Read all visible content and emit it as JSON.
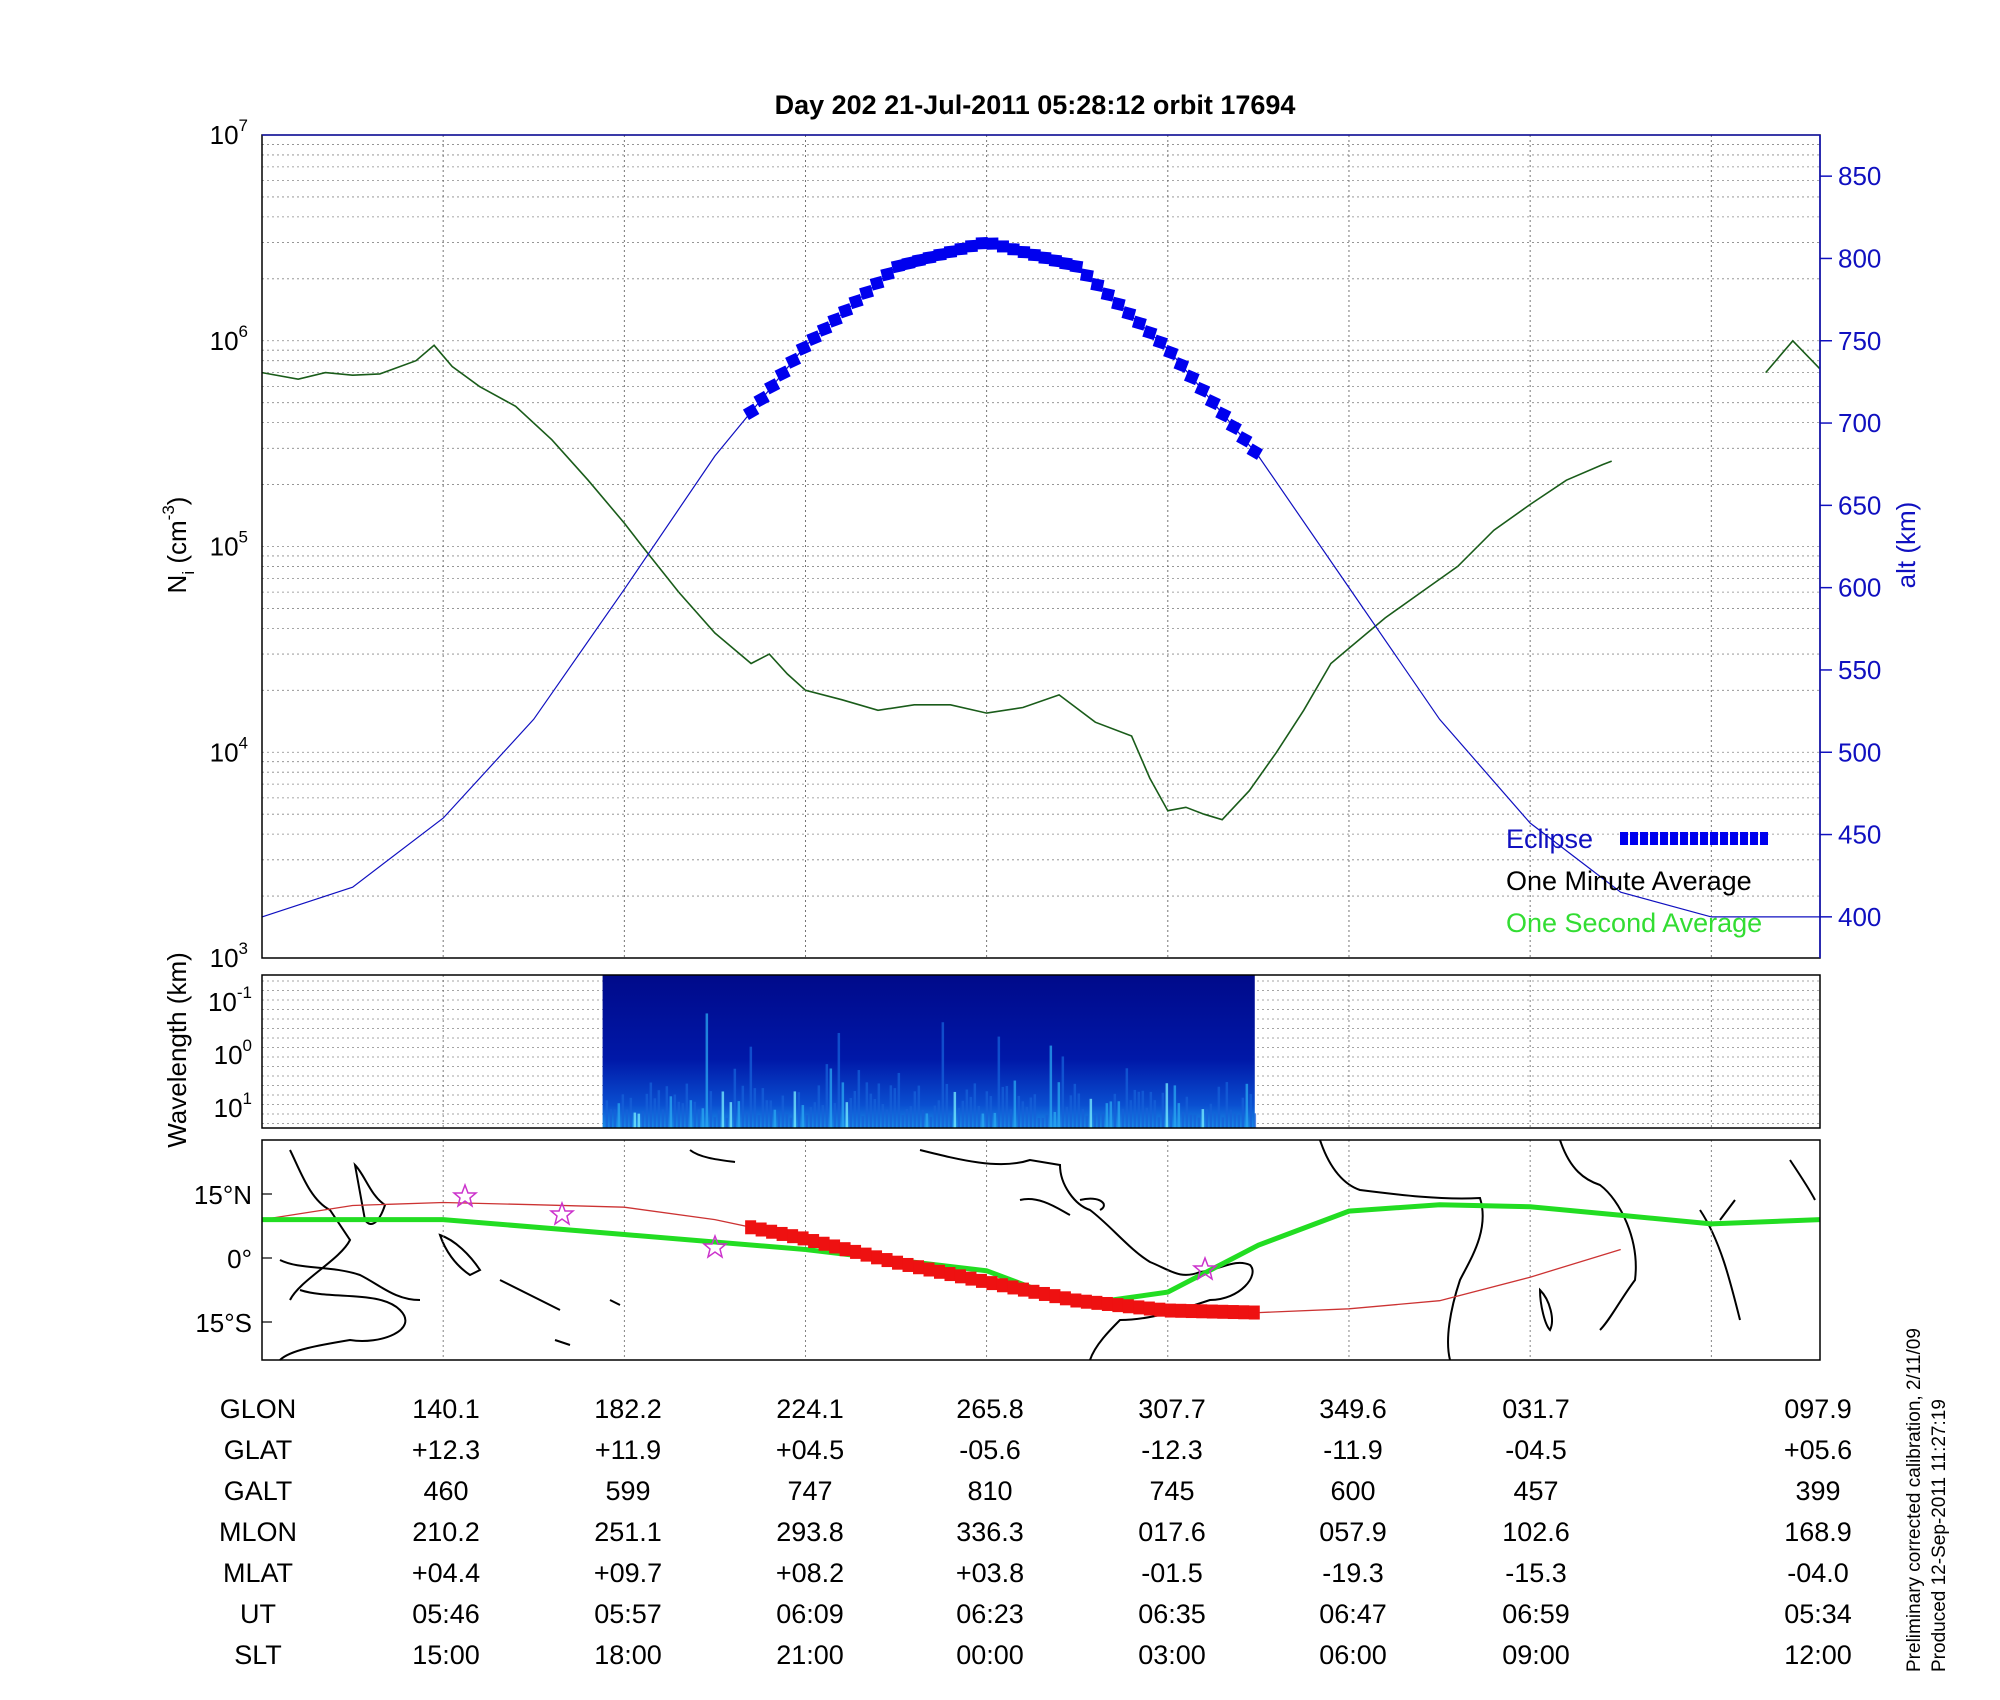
{
  "chart_data": [
    {
      "type": "line",
      "title": "Day 202  21-Jul-2011 05:28:12   orbit 17694",
      "ylabel": "N_i (cm^-3)",
      "ylabel_base": "N",
      "ylabel_sub": "i",
      "ylabel_unit_open": " (cm",
      "ylabel_unit_sup": "-3",
      "ylabel_unit_close": ")",
      "y_scale": "log",
      "ylim": [
        1000,
        10000000
      ],
      "y_ticks": [
        {
          "base": "10",
          "exp": "3"
        },
        {
          "base": "10",
          "exp": "4"
        },
        {
          "base": "10",
          "exp": "5"
        },
        {
          "base": "10",
          "exp": "6"
        },
        {
          "base": "10",
          "exp": "7"
        }
      ],
      "y2label": "alt (km)",
      "y2lim": [
        375,
        875
      ],
      "y2_ticks": [
        "400",
        "450",
        "500",
        "550",
        "600",
        "650",
        "700",
        "750",
        "800",
        "850"
      ],
      "x_index_range": [
        0,
        8.6
      ],
      "grid": true,
      "series": [
        {
          "name": "One Minute Average",
          "color": "#1a5c1a",
          "x": [
            0,
            0.2,
            0.35,
            0.5,
            0.65,
            0.85,
            0.95,
            1.05,
            1.2,
            1.4,
            1.6,
            1.8,
            2.0,
            2.1,
            2.3,
            2.5,
            2.7,
            2.8,
            2.9,
            3.0,
            3.2,
            3.4,
            3.6,
            3.8,
            4.0,
            4.2,
            4.4,
            4.6,
            4.8,
            4.9,
            5.0,
            5.1,
            5.2,
            5.3,
            5.45,
            5.6,
            5.75,
            5.9,
            6.0,
            6.2,
            6.4,
            6.6,
            6.8,
            7.0,
            7.2,
            7.4,
            7.45
          ],
          "y": [
            700000,
            650000,
            700000,
            680000,
            690000,
            800000,
            950000,
            750000,
            600000,
            480000,
            330000,
            210000,
            130000,
            100000,
            60000,
            38000,
            27000,
            30000,
            24000,
            20000,
            18000,
            16000,
            17000,
            17000,
            15500,
            16500,
            19000,
            14000,
            12000,
            7500,
            5200,
            5400,
            5000,
            4700,
            6500,
            10000,
            16000,
            27000,
            32000,
            45000,
            60000,
            80000,
            120000,
            160000,
            210000,
            250000,
            260000
          ]
        },
        {
          "name": "One Second Average",
          "color": "#33dd33",
          "x": [],
          "y": []
        },
        {
          "name": "One Minute Average (end segment)",
          "color": "#1a5c1a",
          "x": [
            8.3,
            8.45,
            8.6
          ],
          "y": [
            700000,
            1000000,
            730000
          ]
        },
        {
          "name": "alt (km)",
          "axis": "right",
          "color": "#1010c0",
          "x": [
            0,
            0.5,
            1.0,
            1.5,
            2.0,
            2.5,
            3.0,
            3.5,
            4.0,
            4.5,
            5.0,
            5.5,
            6.0,
            6.5,
            7.0,
            7.5,
            8.0,
            8.6
          ],
          "y": [
            400,
            418,
            460,
            520,
            599,
            680,
            747,
            795,
            810,
            795,
            745,
            680,
            600,
            520,
            457,
            415,
            400,
            400
          ]
        },
        {
          "name": "Eclipse",
          "axis": "right",
          "color": "#0000ee",
          "marker": "square",
          "x_range": [
            2.7,
            5.48
          ]
        }
      ],
      "legend": [
        "Eclipse",
        "One Minute Average",
        "One Second Average"
      ],
      "legend_position": "bottom-right"
    },
    {
      "type": "heatmap",
      "ylabel": "Wavelength (km)",
      "y_ticks": [
        {
          "base": "10",
          "exp": "-1"
        },
        {
          "base": "10",
          "exp": "0"
        },
        {
          "base": "10",
          "exp": "1"
        }
      ],
      "x_index_range": [
        1.88,
        5.48
      ]
    },
    {
      "type": "line",
      "ylabel_ticks": [
        "15°N",
        "0°",
        "15°S"
      ],
      "series": [
        {
          "name": "orbit ground track",
          "color": "#cc3333",
          "x": [
            0,
            0.5,
            1.0,
            1.5,
            2.0,
            2.5,
            3.0,
            3.5,
            4.0,
            4.5,
            5.0,
            5.5,
            6.0,
            6.5,
            7.0,
            7.5
          ],
          "y": [
            9,
            12.3,
            13,
            12.5,
            11.9,
            9,
            4.5,
            -1,
            -5.6,
            -10,
            -12.3,
            -12.8,
            -11.9,
            -10,
            -4.5,
            2
          ]
        },
        {
          "name": "eclipse ground track",
          "color": "#ee1111",
          "marker": "square",
          "x_range": [
            2.7,
            5.48
          ]
        },
        {
          "name": "magnetic equator",
          "color": "#22dd22",
          "x": [
            0,
            1,
            2,
            3,
            4,
            4.5,
            5,
            5.5,
            6,
            6.5,
            7,
            7.5,
            8,
            8.6
          ],
          "y": [
            9,
            9,
            5.5,
            2,
            -3,
            -11,
            -8,
            3,
            11,
            12.5,
            12,
            10,
            8,
            9
          ]
        }
      ]
    }
  ],
  "table": {
    "rows": [
      {
        "label": "GLON",
        "values": [
          "140.1",
          "182.2",
          "224.1",
          "265.8",
          "307.7",
          "349.6",
          "031.7",
          "097.9"
        ]
      },
      {
        "label": "GLAT",
        "values": [
          "+12.3",
          "+11.9",
          "+04.5",
          "-05.6",
          "-12.3",
          "-11.9",
          "-04.5",
          "+05.6"
        ]
      },
      {
        "label": "GALT",
        "values": [
          "460",
          "599",
          "747",
          "810",
          "745",
          "600",
          "457",
          "399"
        ]
      },
      {
        "label": "MLON",
        "values": [
          "210.2",
          "251.1",
          "293.8",
          "336.3",
          "017.6",
          "057.9",
          "102.6",
          "168.9"
        ]
      },
      {
        "label": "MLAT",
        "values": [
          "+04.4",
          "+09.7",
          "+08.2",
          "+03.8",
          "-01.5",
          "-19.3",
          "-15.3",
          "-04.0"
        ]
      },
      {
        "label": "UT",
        "values": [
          "05:46",
          "05:57",
          "06:09",
          "06:23",
          "06:35",
          "06:47",
          "06:59",
          "05:34"
        ]
      },
      {
        "label": "SLT",
        "values": [
          "15:00",
          "18:00",
          "21:00",
          "00:00",
          "03:00",
          "06:00",
          "09:00",
          "12:00"
        ]
      }
    ]
  },
  "footnotes": {
    "line1": "Preliminary corrected calibration, 2/11/09",
    "line2": "Produced 12-Sep-2011 11:27:19"
  }
}
